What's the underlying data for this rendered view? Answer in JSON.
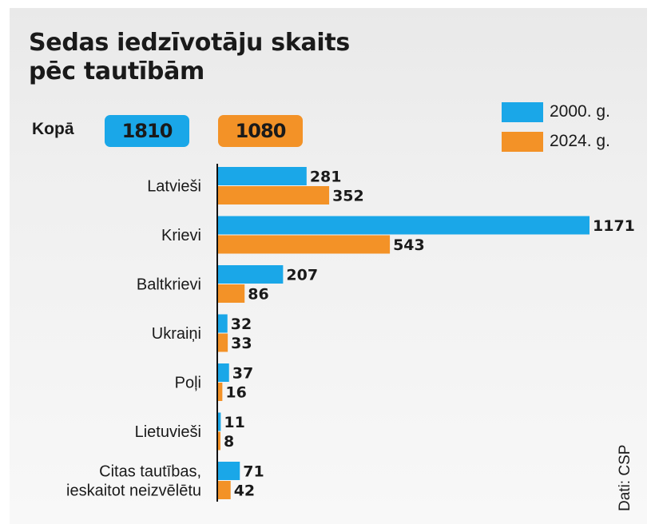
{
  "title": {
    "line1": "Sedas iedzīvotāju skaits",
    "line2": "pēc tautībām"
  },
  "totals": {
    "label": "Kopā",
    "values": [
      "1810",
      "1080"
    ]
  },
  "source": "Dati: CSP",
  "colors": {
    "series_2000": "#1aa7e8",
    "series_2024": "#f39227",
    "axis": "#111111"
  },
  "chart_data": {
    "type": "bar",
    "orientation": "horizontal",
    "categories": [
      [
        "Latvieši"
      ],
      [
        "Krievi"
      ],
      [
        "Baltkrievi"
      ],
      [
        "Ukraiņi"
      ],
      [
        "Poļi"
      ],
      [
        "Lietuvieši"
      ],
      [
        "Citas tautības,",
        "ieskaitot neizvēlētu"
      ]
    ],
    "series": [
      {
        "name": "2000. g.",
        "values": [
          281,
          1171,
          207,
          32,
          37,
          11,
          71
        ]
      },
      {
        "name": "2024. g.",
        "values": [
          352,
          543,
          86,
          33,
          16,
          8,
          42
        ]
      }
    ],
    "legend_position": "top-right",
    "xlim": [
      0,
      1171
    ],
    "data_labels": true,
    "grid": false
  }
}
